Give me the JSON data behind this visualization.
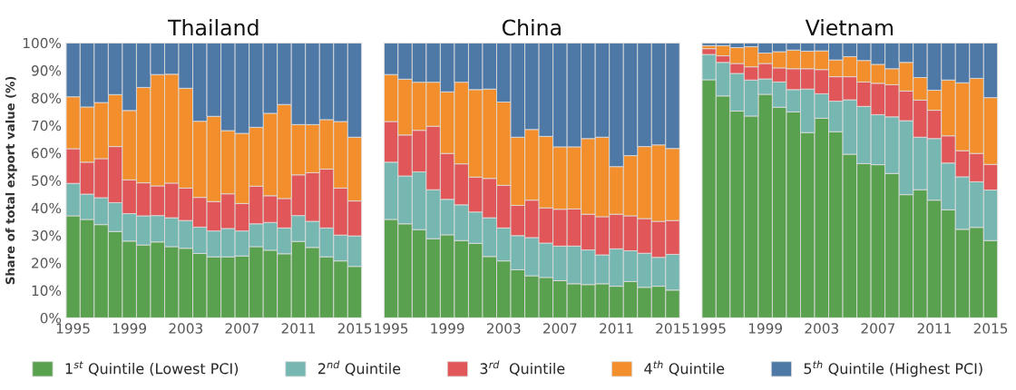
{
  "chart_data": [
    {
      "type": "bar",
      "title": "Thailand",
      "ylabel": "Share of total export value (%)",
      "stacked": true,
      "legend": "bottom",
      "x": [
        1995,
        1996,
        1997,
        1998,
        1999,
        2000,
        2001,
        2002,
        2003,
        2004,
        2005,
        2006,
        2007,
        2008,
        2009,
        2010,
        2011,
        2012,
        2013,
        2014,
        2015
      ],
      "xlim": [
        1994.5,
        2015.5
      ],
      "xticks": [
        1995,
        1999,
        2003,
        2007,
        2011,
        2015
      ],
      "ylim": [
        0,
        100
      ],
      "yticks": [
        {
          "value": 0,
          "label": "0%"
        },
        {
          "value": 10,
          "label": "10%"
        },
        {
          "value": 20,
          "label": "20%"
        },
        {
          "value": 30,
          "label": "30%"
        },
        {
          "value": 40,
          "label": "40%"
        },
        {
          "value": 50,
          "label": "50%"
        },
        {
          "value": 60,
          "label": "60%"
        },
        {
          "value": 70,
          "label": "70%"
        },
        {
          "value": 80,
          "label": "80%"
        },
        {
          "value": 90,
          "label": "90%"
        },
        {
          "value": 100,
          "label": "100%"
        }
      ],
      "series": [
        {
          "name": "1$^{st}$ Quintile (Lowest PCI)",
          "color": "#59a14f",
          "values": [
            37.1,
            35.8,
            33.9,
            31.4,
            27.9,
            26.5,
            27.6,
            25.9,
            25.3,
            23.4,
            22.2,
            22.2,
            22.5,
            25.9,
            24.6,
            23.3,
            27.8,
            25.6,
            22.2,
            20.7,
            18.7
          ]
        },
        {
          "name": "2$^{nd}$ Quintile",
          "color": "#76b7b2",
          "values": [
            11.8,
            9.2,
            9.8,
            10.5,
            10.0,
            10.6,
            9.6,
            10.5,
            10.1,
            9.6,
            9.4,
            10.3,
            9.1,
            8.3,
            10.1,
            9.4,
            9.4,
            9.5,
            10.5,
            9.4,
            11.1
          ]
        },
        {
          "name": "3$^{rd}$  Quintile",
          "color": "#e15759",
          "values": [
            12.6,
            11.6,
            14.2,
            20.4,
            12.3,
            12.0,
            10.8,
            12.6,
            11.8,
            10.8,
            10.7,
            12.6,
            10.0,
            13.7,
            9.7,
            10.7,
            14.8,
            17.7,
            21.4,
            17.1,
            12.7
          ]
        },
        {
          "name": "4$^{th}$ Quintile",
          "color": "#f28e2b",
          "values": [
            18.9,
            20.1,
            20.4,
            18.9,
            25.2,
            34.7,
            40.5,
            39.6,
            36.3,
            27.7,
            31.0,
            23.0,
            25.5,
            21.4,
            30.0,
            34.2,
            18.3,
            17.5,
            18.0,
            24.2,
            23.2
          ]
        },
        {
          "name": "5$^{th}$ Quintile (Highest PCI)",
          "color": "#4e79a7",
          "values": [
            19.6,
            23.3,
            21.7,
            18.8,
            24.6,
            16.2,
            11.5,
            11.4,
            16.5,
            28.5,
            26.7,
            31.9,
            32.9,
            30.7,
            25.6,
            22.4,
            29.7,
            29.7,
            27.9,
            28.6,
            34.3
          ]
        }
      ]
    },
    {
      "type": "bar",
      "title": "China",
      "stacked": true,
      "tick_labels": "x",
      "x": [
        1995,
        1996,
        1997,
        1998,
        1999,
        2000,
        2001,
        2002,
        2003,
        2004,
        2005,
        2006,
        2007,
        2008,
        2009,
        2010,
        2011,
        2012,
        2013,
        2014,
        2015
      ],
      "xlim": [
        1994.5,
        2015.5
      ],
      "xticks": [
        1995,
        1999,
        2003,
        2007,
        2011,
        2015
      ],
      "ylim": [
        0,
        100
      ],
      "series": [
        {
          "color": "#59a14f",
          "values": [
            35.8,
            34.2,
            32.1,
            28.8,
            30.2,
            28.1,
            27.1,
            22.3,
            20.7,
            17.5,
            15.3,
            14.7,
            13.5,
            12.4,
            12.1,
            12.4,
            11.5,
            13.2,
            11.1,
            11.5,
            10.1
          ]
        },
        {
          "color": "#76b7b2",
          "values": [
            20.8,
            17.4,
            21.0,
            17.8,
            12.9,
            13.0,
            11.4,
            14.1,
            12.0,
            12.4,
            13.9,
            12.5,
            12.6,
            13.7,
            12.6,
            10.5,
            13.6,
            11.2,
            12.4,
            10.5,
            13.0
          ]
        },
        {
          "color": "#e15759",
          "values": [
            14.8,
            14.9,
            15.1,
            23.1,
            16.7,
            14.9,
            12.7,
            14.3,
            15.5,
            11.0,
            13.6,
            12.8,
            13.4,
            13.5,
            13.0,
            13.9,
            12.6,
            12.7,
            12.6,
            13.1,
            12.3
          ]
        },
        {
          "color": "#f28e2b",
          "values": [
            17.1,
            20.3,
            17.5,
            16.0,
            22.4,
            29.7,
            31.8,
            32.5,
            30.3,
            24.8,
            25.7,
            26.0,
            22.7,
            22.6,
            27.5,
            28.9,
            17.3,
            21.9,
            26.2,
            27.8,
            26.2
          ]
        },
        {
          "color": "#4e79a7",
          "values": [
            11.5,
            13.2,
            14.3,
            14.3,
            17.8,
            14.3,
            17.0,
            16.8,
            21.5,
            34.3,
            31.5,
            34.0,
            37.8,
            37.8,
            34.8,
            34.3,
            45.0,
            41.0,
            37.7,
            37.1,
            38.4
          ]
        }
      ]
    },
    {
      "type": "bar",
      "title": "Vietnam",
      "stacked": true,
      "tick_labels": "x",
      "x": [
        1995,
        1996,
        1997,
        1998,
        1999,
        2000,
        2001,
        2002,
        2003,
        2004,
        2005,
        2006,
        2007,
        2008,
        2009,
        2010,
        2011,
        2012,
        2013,
        2014,
        2015
      ],
      "xlim": [
        1994.5,
        2015.5
      ],
      "xticks": [
        1995,
        1999,
        2003,
        2007,
        2011,
        2015
      ],
      "ylim": [
        0,
        100
      ],
      "series": [
        {
          "color": "#59a14f",
          "values": [
            86.6,
            80.7,
            75.2,
            73.4,
            81.3,
            76.6,
            74.9,
            67.4,
            72.6,
            67.7,
            59.5,
            56.1,
            55.7,
            52.5,
            44.8,
            46.6,
            42.8,
            39.3,
            32.2,
            32.9,
            28.1
          ]
        },
        {
          "color": "#76b7b2",
          "values": [
            9.2,
            12.2,
            13.7,
            13.1,
            5.6,
            9.2,
            8.1,
            15.8,
            8.9,
            11.1,
            19.8,
            20.8,
            18.2,
            20.6,
            26.9,
            19.1,
            22.4,
            17.0,
            19.1,
            16.6,
            18.4
          ]
        },
        {
          "color": "#e15759",
          "values": [
            2.1,
            2.4,
            3.6,
            4.8,
            5.6,
            5.1,
            7.6,
            7.4,
            8.8,
            8.9,
            8.4,
            8.9,
            11.4,
            11.7,
            10.8,
            13.5,
            10.3,
            9.9,
            9.5,
            10.3,
            9.3
          ]
        },
        {
          "color": "#f28e2b",
          "values": [
            1.1,
            3.7,
            5.8,
            7.3,
            3.8,
            5.9,
            6.8,
            6.4,
            6.8,
            6.1,
            7.3,
            7.8,
            6.9,
            5.8,
            10.4,
            8.2,
            7.3,
            20.3,
            24.7,
            27.3,
            24.3
          ]
        },
        {
          "color": "#4e79a7",
          "values": [
            1.0,
            1.0,
            1.7,
            1.4,
            3.7,
            3.2,
            2.6,
            3.0,
            2.9,
            6.2,
            5.0,
            6.4,
            7.8,
            9.4,
            7.1,
            12.6,
            17.2,
            13.5,
            14.5,
            12.9,
            19.9
          ]
        }
      ]
    }
  ]
}
